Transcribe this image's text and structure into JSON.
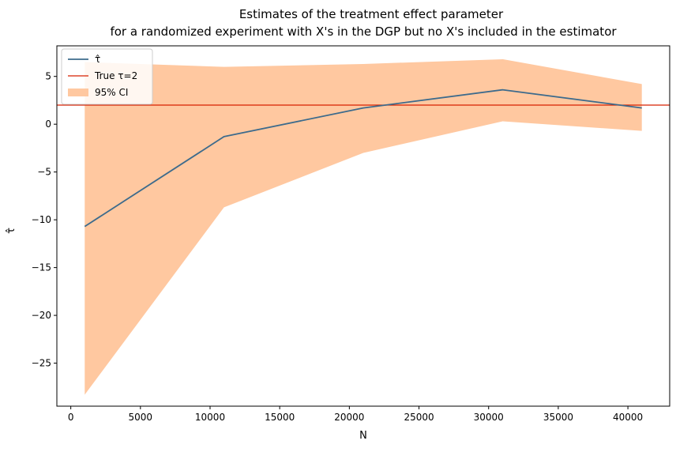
{
  "chart_data": {
    "type": "line",
    "title_line1": "Estimates of the treatment effect parameter",
    "title_line2": "for a randomized experiment with X's in the DGP but no X's included in the estimator",
    "xlabel": "N",
    "ylabel": "τ̂",
    "xlim": [
      -1000,
      43000
    ],
    "ylim": [
      -29.5,
      8.2
    ],
    "xticks": [
      0,
      5000,
      10000,
      15000,
      20000,
      25000,
      30000,
      35000,
      40000
    ],
    "xtick_labels": [
      "0",
      "5000",
      "10000",
      "15000",
      "20000",
      "25000",
      "30000",
      "35000",
      "40000"
    ],
    "yticks": [
      5,
      0,
      -5,
      -10,
      -15,
      -20,
      -25
    ],
    "ytick_labels": [
      "5",
      "0",
      "−5",
      "−10",
      "−15",
      "−20",
      "−25"
    ],
    "x": [
      1000,
      11000,
      21000,
      31000,
      41000
    ],
    "series": [
      {
        "name": "τ̂",
        "values": [
          -10.7,
          -1.3,
          1.7,
          3.6,
          1.7
        ],
        "color": "#3d6b8c"
      }
    ],
    "ci": {
      "name": "95% CI",
      "lower": [
        -28.3,
        -8.7,
        -3.0,
        0.3,
        -0.7
      ],
      "upper": [
        6.5,
        6.0,
        6.3,
        6.8,
        4.2
      ],
      "color": "#ffc8a0"
    },
    "true_line": {
      "name": "True τ=2",
      "value": 2,
      "color": "#d62000"
    },
    "legend_position": "top-left",
    "legend": [
      {
        "label": "τ̂",
        "kind": "line",
        "color": "#3d6b8c"
      },
      {
        "label": "True τ=2",
        "kind": "line",
        "color": "#d62000"
      },
      {
        "label": "95% CI",
        "kind": "patch",
        "color": "#ffc8a0"
      }
    ]
  }
}
